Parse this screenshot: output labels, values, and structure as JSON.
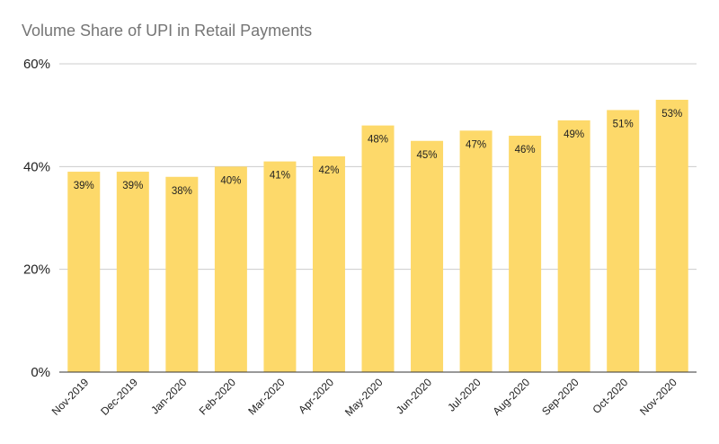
{
  "chart_data": {
    "type": "bar",
    "title": "Volume Share of UPI in Retail Payments",
    "xlabel": "",
    "ylabel": "",
    "categories": [
      "Nov-2019",
      "Dec-2019",
      "Jan-2020",
      "Feb-2020",
      "Mar-2020",
      "Apr-2020",
      "May-2020",
      "Jun-2020",
      "Jul-2020",
      "Aug-2020",
      "Sep-2020",
      "Oct-2020",
      "Nov-2020"
    ],
    "values": [
      39,
      39,
      38,
      40,
      41,
      42,
      48,
      45,
      47,
      46,
      49,
      51,
      53
    ],
    "data_labels": [
      "39%",
      "39%",
      "38%",
      "40%",
      "41%",
      "42%",
      "48%",
      "45%",
      "47%",
      "46%",
      "49%",
      "51%",
      "53%"
    ],
    "ylim": [
      0,
      60
    ],
    "yticks": [
      0,
      20,
      40,
      60
    ],
    "ytick_labels": [
      "0%",
      "20%",
      "40%",
      "60%"
    ],
    "grid": true,
    "legend": "none",
    "bar_color": "#fdd96a",
    "gridline_color": "#cccccc"
  }
}
